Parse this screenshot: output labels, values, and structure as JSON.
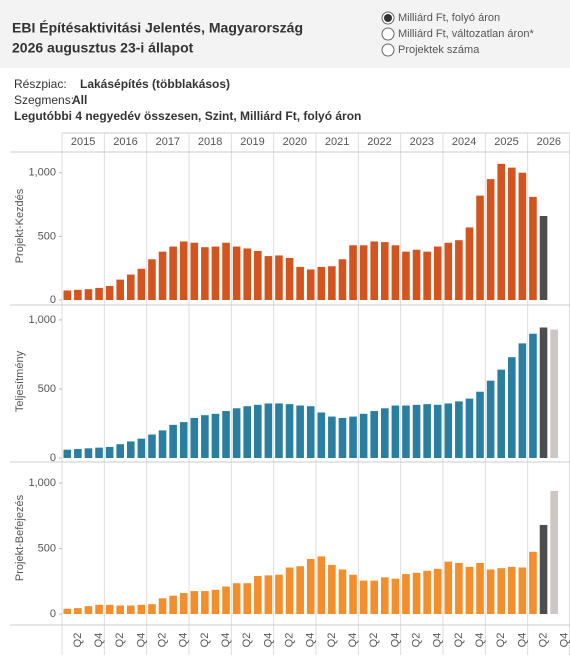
{
  "header": {
    "title_lines": [
      "EBI Építésaktivitási Jelentés, Magyarország",
      "2026 augusztus 23-i állapot"
    ],
    "options": [
      {
        "label": "Milliárd Ft, folyó áron",
        "selected": true
      },
      {
        "label": "Milliárd Ft, változatlan áron*",
        "selected": false
      },
      {
        "label": "Projektek száma",
        "selected": false
      }
    ]
  },
  "filters": [
    {
      "label": "Részpiac:",
      "value": "Lakásépítés (többlakásos)"
    },
    {
      "label": "Szegmens:",
      "value": "All"
    }
  ],
  "subtitle": "Legutóbbi 4 negyedév összesen, Szint, Milliárd Ft, folyó áron",
  "chart_data": [
    {
      "type": "bar",
      "y_label": "Projekt-Kezdés",
      "color": "#d4541f",
      "years": [
        "2015",
        "2016",
        "2017",
        "2018",
        "2019",
        "2020",
        "2021",
        "2022",
        "2023",
        "2024",
        "2025",
        "2026"
      ],
      "values": [
        75,
        80,
        85,
        95,
        110,
        160,
        200,
        245,
        320,
        380,
        420,
        460,
        450,
        415,
        420,
        450,
        420,
        405,
        385,
        345,
        350,
        330,
        260,
        240,
        260,
        265,
        320,
        430,
        430,
        460,
        455,
        430,
        380,
        395,
        380,
        420,
        450,
        470,
        570,
        820,
        950,
        1070,
        1040,
        1000,
        810,
        660,
        null,
        null
      ],
      "highlights": [
        {
          "index": 45,
          "color": "#4d4d4d"
        }
      ],
      "ylim": [
        0,
        1100
      ],
      "yticks": [
        0,
        500,
        {
          "value": 1000,
          "label": "1,000"
        }
      ]
    },
    {
      "type": "bar",
      "y_label": "Teljesítmény",
      "color": "#2a7ea0",
      "values": [
        60,
        65,
        70,
        75,
        80,
        100,
        120,
        140,
        170,
        200,
        240,
        260,
        290,
        310,
        320,
        340,
        360,
        375,
        385,
        395,
        395,
        390,
        380,
        375,
        330,
        300,
        290,
        300,
        320,
        340,
        360,
        380,
        380,
        385,
        390,
        385,
        395,
        410,
        430,
        480,
        560,
        640,
        730,
        830,
        900,
        945,
        930,
        null
      ],
      "highlights": [
        {
          "index": 45,
          "color": "#4d4d4d"
        },
        {
          "index": 46,
          "color": "#cfc5c3"
        }
      ],
      "ylim": [
        0,
        1050
      ],
      "yticks": [
        0,
        500,
        {
          "value": 1000,
          "label": "1,000"
        }
      ]
    },
    {
      "type": "bar",
      "y_label": "Projekt-Befejezés",
      "color": "#f28e2b",
      "categories": [
        null,
        "Q2",
        null,
        "Q4",
        null,
        "Q2",
        null,
        "Q4",
        null,
        "Q2",
        null,
        "Q4",
        null,
        "Q2",
        null,
        "Q4",
        null,
        "Q2",
        null,
        "Q4",
        null,
        "Q2",
        null,
        "Q4",
        null,
        "Q2",
        null,
        "Q4",
        null,
        "Q2",
        null,
        "Q4",
        null,
        "Q2",
        null,
        "Q4",
        null,
        "Q2",
        null,
        "Q4",
        null,
        "Q2",
        null,
        "Q4",
        null,
        "Q2",
        null,
        "Q4"
      ],
      "values": [
        40,
        45,
        60,
        70,
        70,
        65,
        65,
        70,
        75,
        120,
        140,
        160,
        175,
        175,
        185,
        210,
        235,
        235,
        290,
        295,
        300,
        355,
        365,
        420,
        440,
        375,
        340,
        300,
        255,
        255,
        280,
        270,
        305,
        315,
        330,
        345,
        400,
        390,
        360,
        390,
        340,
        350,
        360,
        355,
        475,
        680,
        940,
        null
      ],
      "highlights": [
        {
          "index": 45,
          "color": "#4d4d4d"
        },
        {
          "index": 46,
          "color": "#cfc5c3"
        }
      ],
      "ylim": [
        0,
        1100
      ],
      "yticks": [
        0,
        500,
        {
          "value": 1000,
          "label": "1,000"
        }
      ]
    }
  ]
}
